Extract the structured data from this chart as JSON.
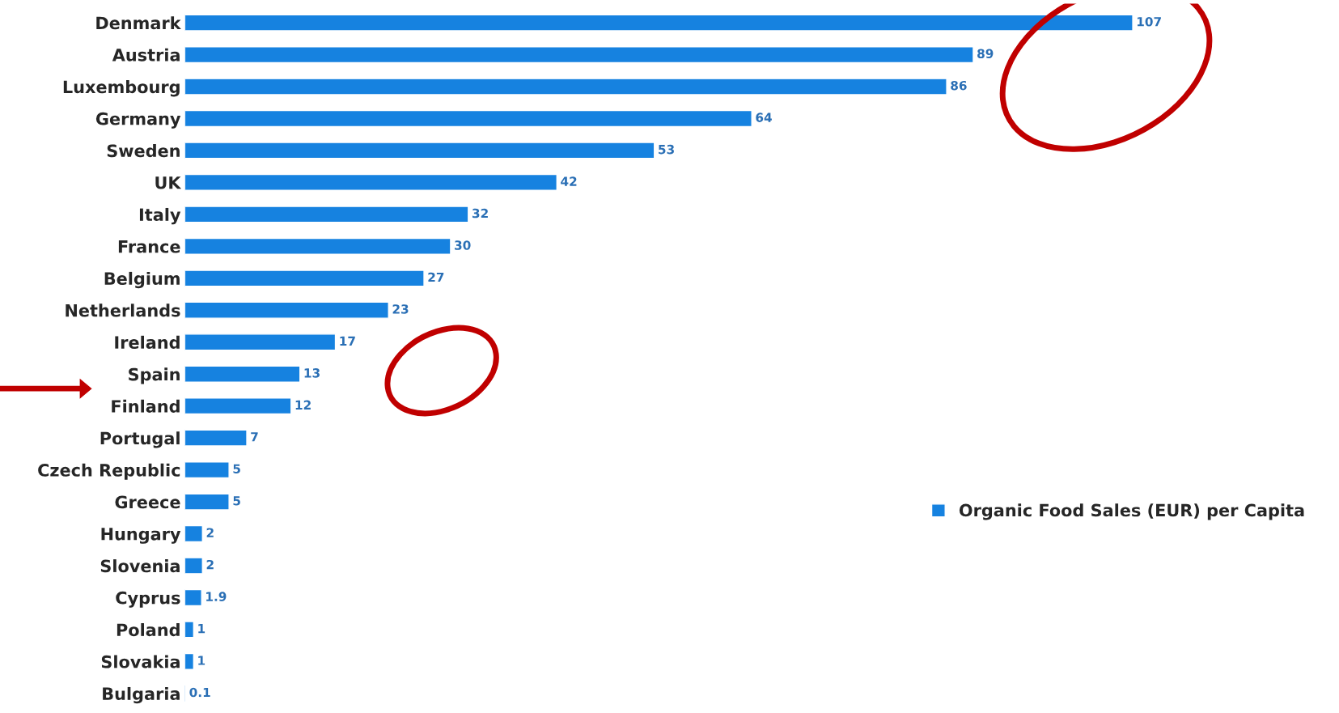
{
  "chart_data": {
    "type": "bar",
    "orientation": "horizontal",
    "categories": [
      "Denmark",
      "Austria",
      "Luxembourg",
      "Germany",
      "Sweden",
      "UK",
      "Italy",
      "France",
      "Belgium",
      "Netherlands",
      "Ireland",
      "Spain",
      "Finland",
      "Portugal",
      "Czech Republic",
      "Greece",
      "Hungary",
      "Slovenia",
      "Cyprus",
      "Poland",
      "Slovakia",
      "Bulgaria"
    ],
    "series": [
      {
        "name": "Organic Food Sales (EUR) per Capita",
        "color": "#1682e0",
        "values": [
          107,
          89,
          86,
          64,
          53,
          42,
          32,
          30,
          27,
          23,
          17,
          13,
          12,
          7,
          5,
          5,
          2,
          2,
          1.9,
          1,
          1,
          0.1
        ]
      }
    ],
    "data_labels": true,
    "legend": "right",
    "grid": false,
    "tick_labels": "y"
  }
}
